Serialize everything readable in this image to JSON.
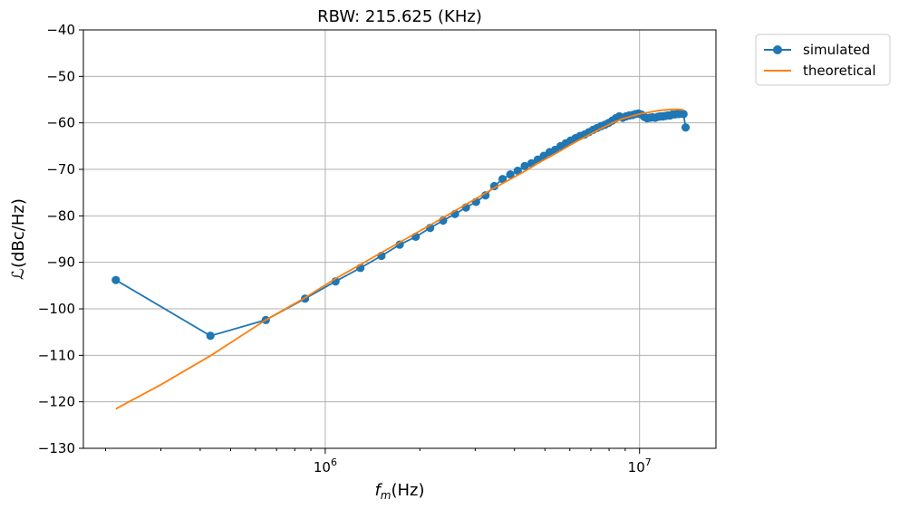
{
  "chart_data": {
    "type": "line",
    "title": "RBW: 215.625 (KHz)",
    "xlabel": "f_m(Hz)",
    "ylabel": "ℒ(dBc/Hz)",
    "xscale": "log",
    "xlim": [
      170000,
      17500000
    ],
    "ylim": [
      -130,
      -40
    ],
    "yticks": [
      -130,
      -120,
      -110,
      -100,
      -90,
      -80,
      -70,
      -60,
      -50,
      -40
    ],
    "xticks_major": [
      1000000,
      10000000
    ],
    "xtick_labels": [
      "10^6",
      "10^7"
    ],
    "grid": true,
    "legend_placement": "outside-top-right",
    "colors": {
      "simulated": "#1f77b4",
      "theoretical": "#ff7f0e",
      "grid": "#b0b0b0"
    },
    "series": [
      {
        "name": "simulated",
        "style": "line-with-circle-markers",
        "x": [
          215625,
          431250,
          646875,
          862500,
          1078125,
          1293750,
          1509375,
          1725000,
          1940625,
          2156250,
          2371875,
          2587500,
          2803125,
          3018750,
          3234375,
          3450000,
          3665625,
          3881250,
          4096875,
          4312500,
          4528125,
          4743750,
          4959375,
          5175000,
          5390625,
          5606250,
          5821875,
          6037500,
          6253125,
          6468750,
          6684375,
          6900000,
          7115625,
          7331250,
          7546875,
          7762500,
          7978125,
          8193750,
          8409375,
          8625000,
          8840625,
          9056250,
          9271875,
          9487500,
          9703125,
          9918750,
          10134375,
          10350000,
          10565625,
          10781250,
          10996875,
          11212500,
          11428125,
          11643750,
          11859375,
          12075000,
          12290625,
          12506250,
          12721875,
          12937500,
          13153125,
          13368750,
          13584375,
          13800000,
          14015625
        ],
        "y": [
          -93.8,
          -105.8,
          -102.4,
          -97.8,
          -94.1,
          -91.2,
          -88.6,
          -86.2,
          -84.5,
          -82.6,
          -81.0,
          -79.6,
          -78.2,
          -77.0,
          -75.6,
          -73.6,
          -72.1,
          -71.1,
          -70.3,
          -69.3,
          -68.7,
          -67.9,
          -67.1,
          -66.3,
          -65.8,
          -65.0,
          -64.4,
          -63.8,
          -63.3,
          -62.8,
          -62.5,
          -62.0,
          -61.5,
          -61.1,
          -60.7,
          -60.4,
          -60.0,
          -59.5,
          -59.0,
          -58.6,
          -58.9,
          -58.6,
          -58.4,
          -58.3,
          -58.1,
          -58.0,
          -58.2,
          -58.7,
          -59.0,
          -58.9,
          -58.8,
          -58.9,
          -58.7,
          -58.6,
          -58.6,
          -58.5,
          -58.4,
          -58.4,
          -58.2,
          -58.2,
          -58.1,
          -58.1,
          -58.0,
          -58.1,
          -61.0
        ]
      },
      {
        "name": "theoretical",
        "style": "line",
        "x": [
          215625,
          300000,
          431250,
          646875,
          862500,
          1078125,
          1293750,
          1509375,
          1725000,
          2156250,
          2587500,
          3018750,
          3450000,
          3881250,
          4312500,
          4743750,
          5175000,
          5606250,
          6037500,
          6468750,
          6900000,
          7546875,
          8193750,
          8840625,
          9487500,
          10134375,
          10781250,
          11428125,
          12075000,
          12721875,
          13368750,
          13800000
        ],
        "y": [
          -121.5,
          -116.3,
          -110.1,
          -102.4,
          -97.6,
          -93.5,
          -90.5,
          -87.9,
          -85.7,
          -82.0,
          -78.9,
          -76.3,
          -74.0,
          -72.1,
          -70.4,
          -68.7,
          -67.3,
          -66.0,
          -64.7,
          -63.6,
          -62.6,
          -61.2,
          -60.0,
          -59.1,
          -58.5,
          -58.0,
          -57.7,
          -57.4,
          -57.2,
          -57.1,
          -57.1,
          -57.2
        ]
      }
    ]
  }
}
